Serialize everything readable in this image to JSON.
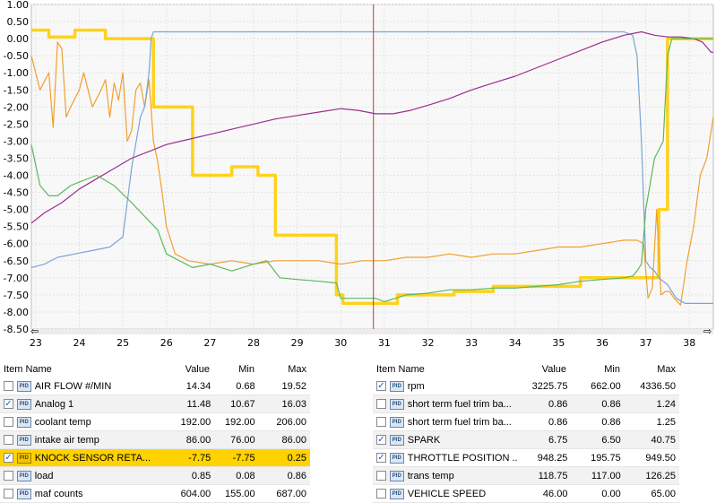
{
  "chart_data": {
    "type": "line",
    "xlim": [
      22.9,
      38.55
    ],
    "ylim": [
      -8.5,
      1.0
    ],
    "x_ticks": [
      "23",
      "24",
      "25",
      "26",
      "27",
      "28",
      "29",
      "30",
      "31",
      "32",
      "33",
      "34",
      "35",
      "36",
      "37",
      "38"
    ],
    "y_ticks": [
      "1.00",
      "0.50",
      "0.00",
      "-0.50",
      "-1.00",
      "-1.50",
      "-2.00",
      "-2.50",
      "-3.00",
      "-3.50",
      "-4.00",
      "-4.50",
      "-5.00",
      "-5.50",
      "-6.00",
      "-6.50",
      "-7.00",
      "-7.50",
      "-8.00",
      "-8.50"
    ],
    "cursor_x": 30.75,
    "grid": true,
    "series": [
      {
        "color": "#ffd21a",
        "x": [
          22.9,
          23.3,
          23.3,
          23.9,
          23.9,
          24.6,
          24.6,
          25.7,
          25.7,
          26.6,
          26.6,
          27.5,
          27.5,
          28.1,
          28.1,
          28.5,
          28.5,
          29.9,
          29.9,
          30.05,
          30.05,
          31.3,
          31.3,
          32.6,
          32.6,
          33.5,
          33.5,
          34.7,
          34.7,
          35.5,
          35.5,
          36.5,
          36.5,
          37.3,
          37.3,
          37.5,
          37.5,
          38.55
        ],
        "y": [
          0.25,
          0.25,
          0.05,
          0.05,
          0.25,
          0.25,
          0.0,
          0.0,
          -2.0,
          -2.0,
          -4.0,
          -4.0,
          -3.75,
          -3.75,
          -4.0,
          -4.0,
          -5.75,
          -5.75,
          -7.5,
          -7.5,
          -7.75,
          -7.75,
          -7.5,
          -7.5,
          -7.4,
          -7.4,
          -7.25,
          -7.25,
          -7.25,
          -7.25,
          -7.0,
          -7.0,
          -7.0,
          -7.0,
          -5.0,
          -5.0,
          0.0,
          0.0
        ]
      },
      {
        "color": "#f0a030",
        "x": [
          22.9,
          23.1,
          23.3,
          23.4,
          23.5,
          23.6,
          23.7,
          23.8,
          24.0,
          24.1,
          24.3,
          24.5,
          24.6,
          24.7,
          24.8,
          24.9,
          25.0,
          25.1,
          25.2,
          25.3,
          25.4,
          25.5,
          25.6,
          25.7,
          25.8,
          25.9,
          26.0,
          26.2,
          26.5,
          27.0,
          27.5,
          28.0,
          28.5,
          29.0,
          29.5,
          30.0,
          30.5,
          31.0,
          31.5,
          32.0,
          32.5,
          33.0,
          33.5,
          34.0,
          34.5,
          35.0,
          35.5,
          36.0,
          36.5,
          36.8,
          36.95,
          37.05,
          37.15,
          37.25,
          37.35,
          37.45,
          37.55,
          37.65,
          37.8,
          37.95,
          38.1,
          38.25,
          38.4,
          38.55
        ],
        "y": [
          -0.5,
          -1.5,
          -1.0,
          -2.6,
          -0.1,
          -0.3,
          -2.3,
          -2.0,
          -1.5,
          -1.0,
          -2.0,
          -1.5,
          -1.2,
          -2.3,
          -1.3,
          -1.8,
          -1.0,
          -3.0,
          -2.7,
          -1.5,
          -1.3,
          -2.0,
          -1.2,
          -3.0,
          -3.6,
          -4.5,
          -5.5,
          -6.3,
          -6.5,
          -6.6,
          -6.5,
          -6.6,
          -6.5,
          -6.5,
          -6.5,
          -6.6,
          -6.5,
          -6.5,
          -6.4,
          -6.4,
          -6.3,
          -6.4,
          -6.3,
          -6.3,
          -6.2,
          -6.1,
          -6.1,
          -6.0,
          -5.9,
          -5.9,
          -6.0,
          -7.6,
          -7.3,
          -5.0,
          -7.5,
          -7.4,
          -7.4,
          -7.6,
          -7.8,
          -6.5,
          -5.5,
          -4.0,
          -3.5,
          -2.3
        ]
      },
      {
        "color": "#7ba3d6",
        "x": [
          22.9,
          23.2,
          23.5,
          23.9,
          24.3,
          24.7,
          25.0,
          25.2,
          25.4,
          25.5,
          25.6,
          25.65,
          25.7,
          26.5,
          27.5,
          28.5,
          29.5,
          30.5,
          31.5,
          32.5,
          33.5,
          34.5,
          35.5,
          36.0,
          36.5,
          36.7,
          36.8,
          36.9,
          37.0,
          37.1,
          37.2,
          37.3,
          37.5,
          37.7,
          37.9,
          38.2,
          38.55
        ],
        "y": [
          -6.7,
          -6.6,
          -6.4,
          -6.3,
          -6.2,
          -6.1,
          -5.8,
          -3.8,
          -2.3,
          -2.0,
          -1.0,
          0.0,
          0.2,
          0.2,
          0.2,
          0.2,
          0.2,
          0.2,
          0.2,
          0.2,
          0.2,
          0.2,
          0.2,
          0.2,
          0.2,
          0.1,
          -0.5,
          -3.0,
          -6.5,
          -6.7,
          -6.8,
          -7.0,
          -7.2,
          -7.6,
          -7.75,
          -7.75,
          -7.75
        ]
      },
      {
        "color": "#9b2d8e",
        "x": [
          22.9,
          23.2,
          23.6,
          24.0,
          24.4,
          24.8,
          25.2,
          25.6,
          26.0,
          26.5,
          27.0,
          27.5,
          28.0,
          28.5,
          29.0,
          29.5,
          30.0,
          30.4,
          30.8,
          31.2,
          31.6,
          32.0,
          32.5,
          33.0,
          33.5,
          34.0,
          34.5,
          35.0,
          35.5,
          36.0,
          36.5,
          36.9,
          37.2,
          37.5,
          37.8,
          38.1,
          38.3,
          38.4,
          38.5,
          38.55
        ],
        "y": [
          -5.4,
          -5.1,
          -4.8,
          -4.4,
          -4.1,
          -3.8,
          -3.5,
          -3.3,
          -3.1,
          -2.95,
          -2.8,
          -2.65,
          -2.5,
          -2.35,
          -2.25,
          -2.15,
          -2.05,
          -2.1,
          -2.2,
          -2.2,
          -2.1,
          -1.95,
          -1.75,
          -1.5,
          -1.3,
          -1.1,
          -0.85,
          -0.6,
          -0.35,
          -0.1,
          0.1,
          0.2,
          0.1,
          0.05,
          0.05,
          0.0,
          -0.1,
          -0.25,
          -0.4,
          -0.4
        ]
      },
      {
        "color": "#5cb85c",
        "x": [
          22.9,
          23.1,
          23.3,
          23.5,
          23.8,
          24.0,
          24.4,
          24.8,
          25.2,
          25.5,
          25.8,
          26.0,
          26.3,
          26.6,
          27.0,
          27.5,
          28.0,
          28.3,
          28.6,
          29.0,
          29.5,
          29.9,
          30.0,
          30.2,
          30.8,
          31.0,
          31.5,
          32.0,
          32.5,
          33.0,
          33.5,
          34.0,
          34.5,
          35.0,
          35.5,
          36.0,
          36.5,
          36.7,
          36.8,
          36.9,
          37.0,
          37.2,
          37.4,
          37.5,
          37.6,
          38.55
        ],
        "y": [
          -3.1,
          -4.3,
          -4.6,
          -4.6,
          -4.3,
          -4.2,
          -4.0,
          -4.3,
          -4.8,
          -5.2,
          -5.6,
          -6.3,
          -6.5,
          -6.7,
          -6.6,
          -6.8,
          -6.6,
          -6.5,
          -7.0,
          -7.05,
          -7.1,
          -7.15,
          -7.6,
          -7.6,
          -7.6,
          -7.7,
          -7.5,
          -7.45,
          -7.35,
          -7.35,
          -7.3,
          -7.3,
          -7.25,
          -7.2,
          -7.1,
          -7.05,
          -7.0,
          -6.95,
          -6.8,
          -6.6,
          -5.0,
          -3.5,
          -3.0,
          -0.5,
          0.0,
          0.0
        ]
      }
    ]
  },
  "left_table": {
    "headers": {
      "name": "Item Name",
      "value": "Value",
      "min": "Min",
      "max": "Max"
    },
    "rows": [
      {
        "checked": false,
        "icon": "PID",
        "name": "AIR FLOW #/MIN",
        "value": "14.34",
        "min": "0.68",
        "max": "19.52"
      },
      {
        "checked": true,
        "icon": "PID",
        "name": "Analog 1",
        "value": "11.48",
        "min": "10.67",
        "max": "16.03"
      },
      {
        "checked": false,
        "icon": "PID",
        "name": "coolant temp",
        "value": "192.00",
        "min": "192.00",
        "max": "206.00"
      },
      {
        "checked": false,
        "icon": "PID",
        "name": "intake air temp",
        "value": "86.00",
        "min": "76.00",
        "max": "86.00"
      },
      {
        "checked": true,
        "icon": "PID",
        "name": "KNOCK SENSOR RETA...",
        "value": "-7.75",
        "min": "-7.75",
        "max": "0.25",
        "highlight": true
      },
      {
        "checked": false,
        "icon": "PID",
        "name": "load",
        "value": "0.85",
        "min": "0.08",
        "max": "0.86"
      },
      {
        "checked": false,
        "icon": "PID",
        "name": "maf counts",
        "value": "604.00",
        "min": "155.00",
        "max": "687.00"
      }
    ]
  },
  "right_table": {
    "headers": {
      "name": "Item Name",
      "value": "Value",
      "min": "Min",
      "max": "Max"
    },
    "rows": [
      {
        "checked": true,
        "icon": "PID",
        "name": "rpm",
        "value": "3225.75",
        "min": "662.00",
        "max": "4336.50"
      },
      {
        "checked": false,
        "icon": "PID",
        "name": "short term fuel trim ba...",
        "value": "0.86",
        "min": "0.86",
        "max": "1.24"
      },
      {
        "checked": false,
        "icon": "PID",
        "name": "short term fuel trim ba...",
        "value": "0.86",
        "min": "0.86",
        "max": "1.25"
      },
      {
        "checked": true,
        "icon": "PID",
        "name": "SPARK",
        "value": "6.75",
        "min": "6.50",
        "max": "40.75"
      },
      {
        "checked": true,
        "icon": "PID",
        "name": "THROTTLE POSITION ...",
        "value": "948.25",
        "min": "195.75",
        "max": "949.50"
      },
      {
        "checked": false,
        "icon": "PID",
        "name": "trans temp",
        "value": "118.75",
        "min": "117.00",
        "max": "126.25"
      },
      {
        "checked": false,
        "icon": "PID",
        "name": "VEHICLE SPEED",
        "value": "46.00",
        "min": "0.00",
        "max": "65.00"
      }
    ]
  },
  "check_mark": "✓",
  "scroll_left_arrow": "⇦",
  "scroll_right_arrow": "⇨"
}
